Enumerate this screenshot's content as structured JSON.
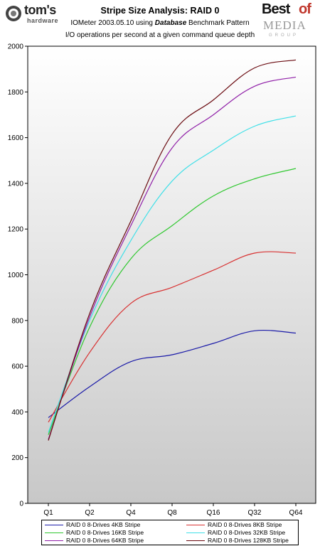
{
  "header": {
    "logo_left_main": "tom's",
    "logo_left_sub": "hardware",
    "logo_right_best": "Best",
    "logo_right_of": "of",
    "logo_right_media": "MEDIA",
    "logo_right_group": "GROUP"
  },
  "chart_data": {
    "type": "line",
    "title": "Stripe Size Analysis: RAID 0",
    "subtitle_prefix": "IOMeter 2003.05.10 using ",
    "subtitle_bold": "Database",
    "subtitle_suffix": " Benchmark Pattern",
    "subtitle2": "I/O operations per second at a given command queue depth",
    "categories": [
      "Q1",
      "Q2",
      "Q4",
      "Q8",
      "Q16",
      "Q32",
      "Q64"
    ],
    "ylim": [
      0,
      2000
    ],
    "yticks": [
      "0",
      "200",
      "400",
      "600",
      "800",
      "1000",
      "1200",
      "1400",
      "1600",
      "1800",
      "2000"
    ],
    "grid": false,
    "legend_position": "bottom",
    "series": [
      {
        "name": "RAID 0 8-Drives 4KB Stripe",
        "color": "#1a1aa8",
        "values": [
          375,
          510,
          620,
          650,
          700,
          755,
          745
        ]
      },
      {
        "name": "RAID 0 8-Drives 8KB Stripe",
        "color": "#d83030",
        "values": [
          355,
          660,
          875,
          945,
          1020,
          1095,
          1095
        ]
      },
      {
        "name": "RAID 0 8-Drives 16KB Stripe",
        "color": "#30c830",
        "values": [
          300,
          770,
          1070,
          1215,
          1345,
          1420,
          1465
        ]
      },
      {
        "name": "RAID 0 8-Drives 32KB Stripe",
        "color": "#40e0e8",
        "values": [
          310,
          800,
          1150,
          1410,
          1545,
          1650,
          1695
        ]
      },
      {
        "name": "RAID 0 8-Drives 64KB Stripe",
        "color": "#9020a8",
        "values": [
          280,
          815,
          1215,
          1555,
          1700,
          1825,
          1865
        ]
      },
      {
        "name": "RAID 0 8-Drives 128KB Stripe",
        "color": "#6a0a10",
        "values": [
          275,
          830,
          1235,
          1615,
          1765,
          1905,
          1940
        ]
      }
    ]
  }
}
